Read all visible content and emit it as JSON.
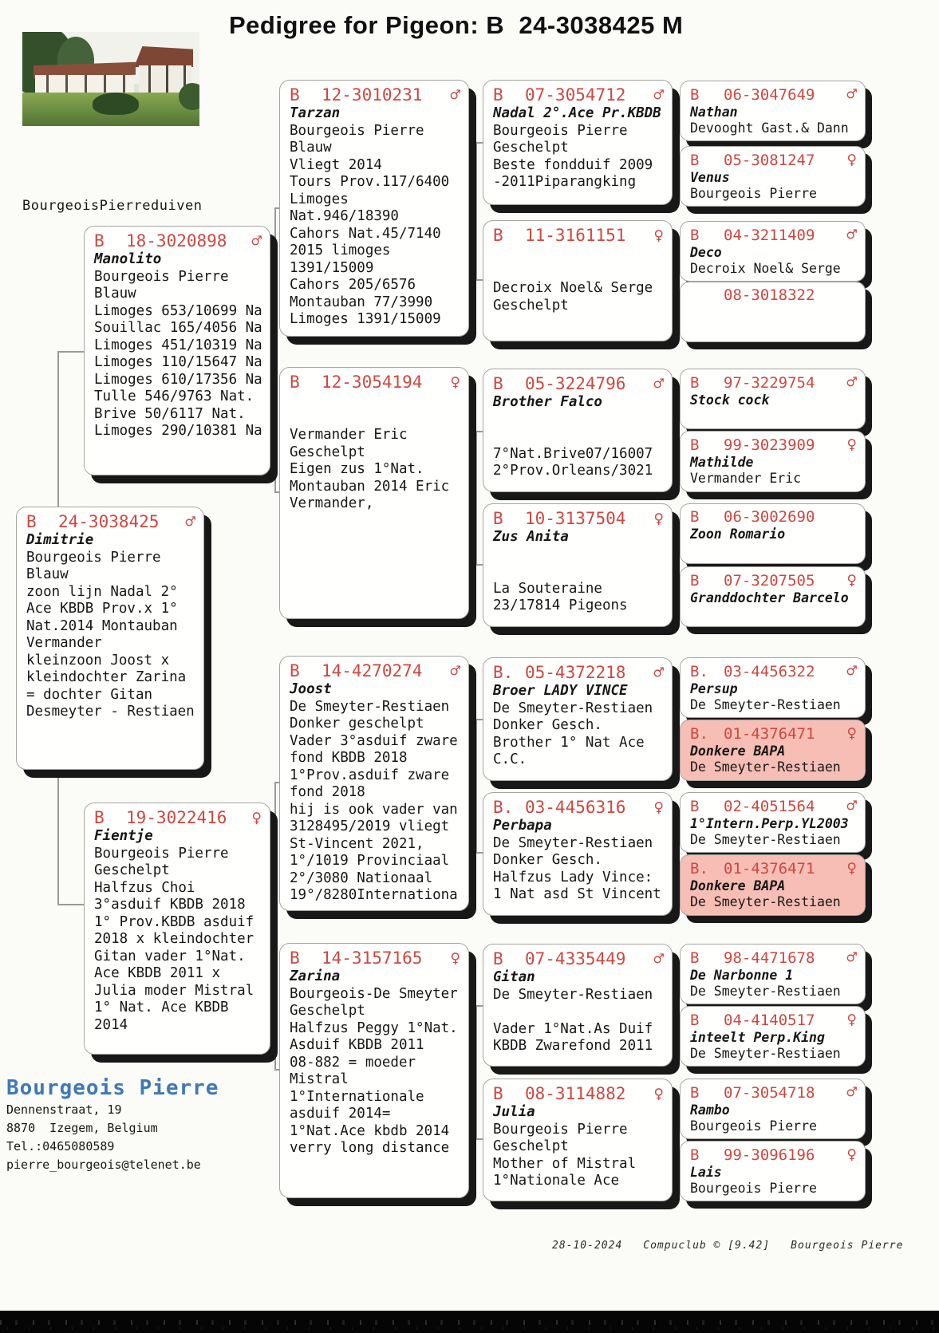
{
  "title": "Pedigree for Pigeon: B  24-3038425 M",
  "loft_label": "BourgeoisPierreduiven",
  "photo_alt": "loft-photo",
  "colors": {
    "red": "#cc4840",
    "pink": "#f6beb5",
    "blue": "#3f79b5",
    "shadow": "#181818"
  },
  "symbols": {
    "male": "♂",
    "female": "♀"
  },
  "contact": {
    "name": "Bourgeois Pierre",
    "address1": "Dennenstraat, 19",
    "address2": "8870  Izegem, Belgium",
    "phone": "Tel.:0465080589",
    "email": "pierre_bourgeois@telenet.be"
  },
  "footer": {
    "date": "28-10-2024",
    "software": "Compuclub © [9.42]",
    "owner": "Bourgeois Pierre"
  },
  "boxes": [
    {
      "id": "dimitrie",
      "country": "B",
      "ring": "24-3038425",
      "sex": "♂",
      "name": "Dimitrie",
      "highlight": false,
      "details": "Bourgeois Pierre\nBlauw\nzoon lijn Nadal 2°\nAce KBDB Prov.x 1°\nNat.2014 Montauban\nVermander\nkleinzoon Joost x\nkleindochter Zarina\n= dochter Gitan\nDesmeyter - Restiaen"
    },
    {
      "id": "manolito",
      "country": "B",
      "ring": "18-3020898",
      "sex": "♂",
      "name": "Manolito",
      "highlight": false,
      "details": "Bourgeois Pierre\nBlauw\nLimoges 653/10699 Na\nSouillac 165/4056 Na\nLimoges 451/10319 Na\nLimoges 110/15647 Na\nLimoges 610/17356 Na\nTulle 546/9763 Nat.\nBrive 50/6117 Nat.\nLimoges 290/10381 Na"
    },
    {
      "id": "fientje",
      "country": "B",
      "ring": "19-3022416",
      "sex": "♀",
      "name": "Fientje",
      "highlight": false,
      "details": "Bourgeois Pierre\nGeschelpt\nHalfzus Choi\n3°asduif KBDB 2018\n1° Prov.KBDB asduif\n2018 x kleindochter\nGitan vader 1°Nat.\nAce KBDB 2011 x\nJulia moder Mistral\n1° Nat. Ace KBDB\n2014"
    },
    {
      "id": "tarzan",
      "country": "B",
      "ring": "12-3010231",
      "sex": "♂",
      "name": "Tarzan",
      "highlight": false,
      "details": "Bourgeois Pierre\nBlauw\nVliegt 2014\nTours Prov.117/6400\nLimoges\nNat.946/18390\nCahors Nat.45/7140\n2015 limoges\n1391/15009\nCahors 205/6576\nMontauban 77/3990\nLimoges 1391/15009"
    },
    {
      "id": "hen-12-3054194",
      "country": "B",
      "ring": "12-3054194",
      "sex": "♀",
      "name": "",
      "highlight": false,
      "details": "\nVermander Eric\nGeschelpt\nEigen zus 1°Nat.\nMontauban 2014 Eric\nVermander,"
    },
    {
      "id": "joost",
      "country": "B",
      "ring": "14-4270274",
      "sex": "♂",
      "name": "Joost",
      "highlight": false,
      "details": "De Smeyter-Restiaen\nDonker geschelpt\nVader 3°asduif zware\nfond KBDB 2018\n1°Prov.asduif zware\nfond 2018\nhij is ook vader van\n3128495/2019 vliegt\nSt-Vincent 2021,\n1°/1019 Provinciaal\n2°/3080 Nationaal\n19°/8280Internationa"
    },
    {
      "id": "zarina",
      "country": "B",
      "ring": "14-3157165",
      "sex": "♀",
      "name": "Zarina",
      "highlight": false,
      "details": "Bourgeois-De Smeyter\nGeschelpt\nHalfzus Peggy 1°Nat.\nAsduif KBDB 2011\n08-882 = moeder\nMistral\n1°Internationale\nasduif 2014=\n1°Nat.Ace kbdb 2014\nverry long distance"
    },
    {
      "id": "nadal",
      "country": "B",
      "ring": "07-3054712",
      "sex": "♂",
      "name": "Nadal 2°.Ace Pr.KBDB",
      "highlight": false,
      "details": "Bourgeois Pierre\nGeschelpt\nBeste fondduif 2009\n-2011Piparangking"
    },
    {
      "id": "hen-11-3161151",
      "country": "B",
      "ring": "11-3161151",
      "sex": "♀",
      "name": "",
      "highlight": false,
      "details": "\nDecroix Noel& Serge\nGeschelpt"
    },
    {
      "id": "brother-falco",
      "country": "B",
      "ring": "05-3224796",
      "sex": "♂",
      "name": "Brother Falco",
      "highlight": false,
      "details": "\n\n7°Nat.Brive07/16007\n2°Prov.Orleans/3021"
    },
    {
      "id": "zus-anita",
      "country": "B",
      "ring": "10-3137504",
      "sex": "♀",
      "name": "Zus Anita",
      "highlight": false,
      "details": "\n\nLa Souteraine\n23/17814 Pigeons"
    },
    {
      "id": "broer-lady-vince",
      "country": "B.",
      "ring": "05-4372218",
      "sex": "♂",
      "name": "Broer LADY VINCE",
      "highlight": false,
      "details": "De Smeyter-Restiaen\nDonker Gesch.\nBrother 1° Nat Ace\nC.C."
    },
    {
      "id": "perbapa",
      "country": "B.",
      "ring": "03-4456316",
      "sex": "♀",
      "name": "Perbapa",
      "highlight": false,
      "details": "De Smeyter-Restiaen\nDonker Gesch.\nHalfzus Lady Vince:\n1 Nat asd St Vincent"
    },
    {
      "id": "gitan",
      "country": "B",
      "ring": "07-4335449",
      "sex": "♂",
      "name": "Gitan",
      "highlight": false,
      "details": "De Smeyter-Restiaen\n\nVader 1°Nat.As Duif\nKBDB Zwarefond 2011"
    },
    {
      "id": "julia",
      "country": "B",
      "ring": "08-3114882",
      "sex": "♀",
      "name": "Julia",
      "highlight": false,
      "details": "Bourgeois Pierre\nGeschelpt\nMother of Mistral\n1°Nationale Ace"
    },
    {
      "id": "nathan",
      "country": "B",
      "ring": "06-3047649",
      "sex": "♂",
      "name": "Nathan",
      "highlight": false,
      "details": "Devooght Gast.& Dann"
    },
    {
      "id": "venus",
      "country": "B",
      "ring": "05-3081247",
      "sex": "♀",
      "name": "Venus",
      "highlight": false,
      "details": "Bourgeois Pierre"
    },
    {
      "id": "deco",
      "country": "B",
      "ring": "04-3211409",
      "sex": "♂",
      "name": "Deco",
      "highlight": false,
      "details": "Decroix Noel& Serge"
    },
    {
      "id": "ring-08-3018322",
      "country": "",
      "ring": "08-3018322",
      "sex": "",
      "name": "",
      "highlight": false,
      "details": ""
    },
    {
      "id": "stock-cock",
      "country": "B",
      "ring": "97-3229754",
      "sex": "♂",
      "name": "Stock cock",
      "highlight": false,
      "details": ""
    },
    {
      "id": "mathilde",
      "country": "B",
      "ring": "99-3023909",
      "sex": "♀",
      "name": "Mathilde",
      "highlight": false,
      "details": "Vermander Eric"
    },
    {
      "id": "zoon-romario",
      "country": "B",
      "ring": "06-3002690",
      "sex": "",
      "name": "Zoon Romario",
      "highlight": false,
      "details": ""
    },
    {
      "id": "granddochter-barcelo",
      "country": "B",
      "ring": "07-3207505",
      "sex": "♀",
      "name": "Granddochter Barcelo",
      "highlight": false,
      "details": ""
    },
    {
      "id": "persup",
      "country": "B.",
      "ring": "03-4456322",
      "sex": "♂",
      "name": "Persup",
      "highlight": false,
      "details": "De Smeyter-Restiaen"
    },
    {
      "id": "donkere-bapa-1",
      "country": "B.",
      "ring": "01-4376471",
      "sex": "♀",
      "name": "Donkere BAPA",
      "highlight": true,
      "details": "De Smeyter-Restiaen"
    },
    {
      "id": "intern-perp",
      "country": "B",
      "ring": "02-4051564",
      "sex": "♂",
      "name": "1°Intern.Perp.YL2003",
      "highlight": false,
      "details": "De Smeyter-Restiaen"
    },
    {
      "id": "donkere-bapa-2",
      "country": "B.",
      "ring": "01-4376471",
      "sex": "♀",
      "name": "Donkere BAPA",
      "highlight": true,
      "details": "De Smeyter-Restiaen"
    },
    {
      "id": "de-narbonne-1",
      "country": "B",
      "ring": "98-4471678",
      "sex": "♂",
      "name": "De Narbonne 1",
      "highlight": false,
      "details": "De Smeyter-Restiaen"
    },
    {
      "id": "inteelt-perp-king",
      "country": "B",
      "ring": "04-4140517",
      "sex": "♀",
      "name": "inteelt Perp.King",
      "highlight": false,
      "details": "De Smeyter-Restiaen"
    },
    {
      "id": "rambo",
      "country": "B",
      "ring": "07-3054718",
      "sex": "♂",
      "name": "Rambo",
      "highlight": false,
      "details": "Bourgeois Pierre"
    },
    {
      "id": "lais",
      "country": "B",
      "ring": "99-3096196",
      "sex": "♀",
      "name": "Lais",
      "highlight": false,
      "details": "Bourgeois Pierre"
    }
  ]
}
